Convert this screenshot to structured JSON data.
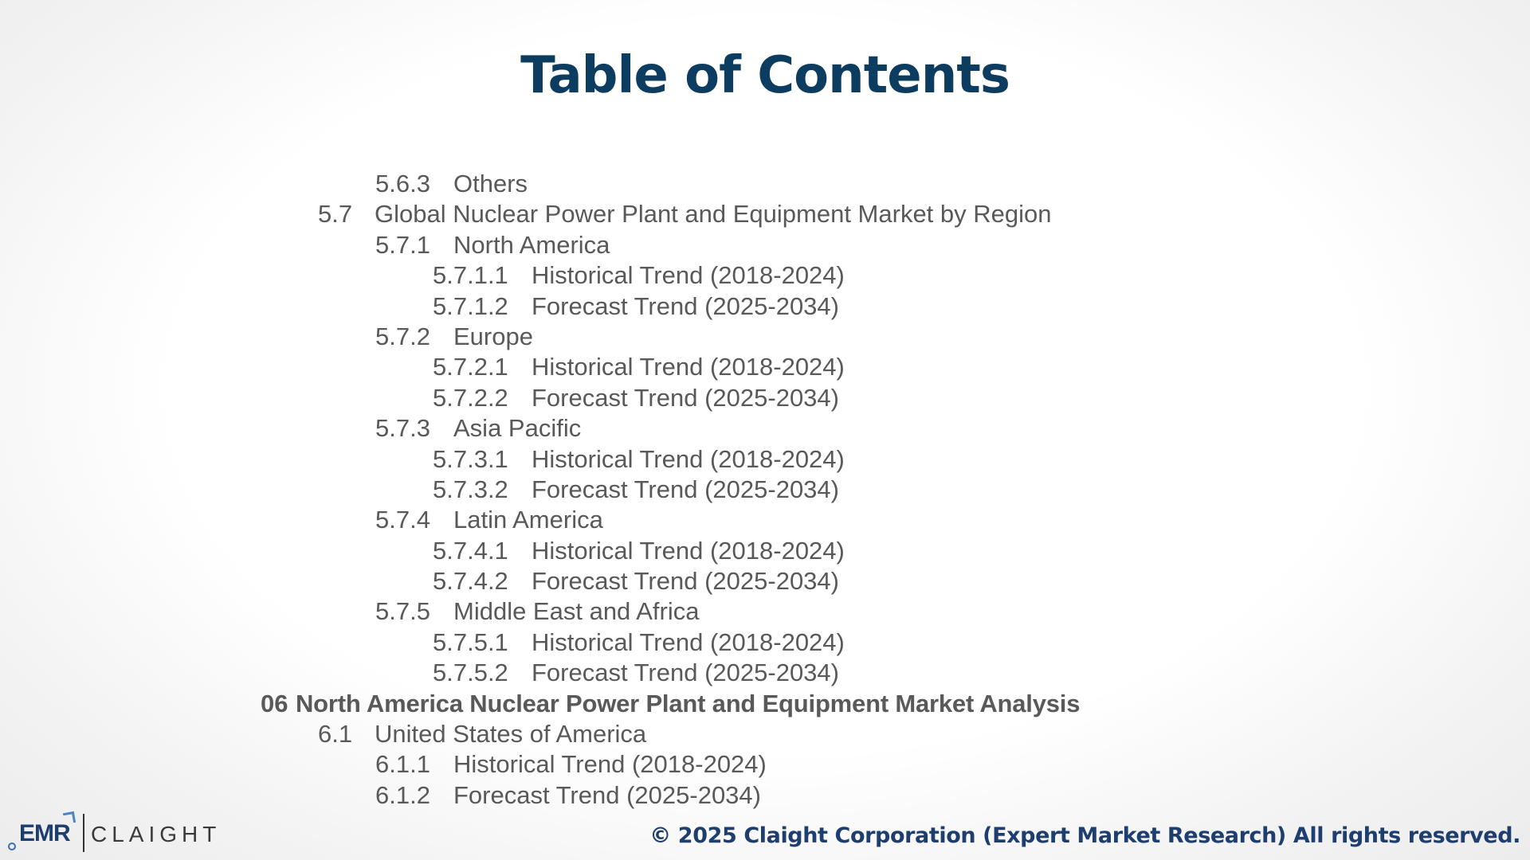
{
  "title": "Table of Contents",
  "toc": [
    {
      "num": "5.6.3",
      "label": "Others",
      "level": 2
    },
    {
      "num": "5.7",
      "label": "Global Nuclear Power Plant and Equipment Market by Region",
      "level": 1
    },
    {
      "num": "5.7.1",
      "label": "North America",
      "level": 2
    },
    {
      "num": "5.7.1.1",
      "label": "Historical Trend (2018-2024)",
      "level": 3
    },
    {
      "num": "5.7.1.2",
      "label": "Forecast Trend (2025-2034)",
      "level": 3
    },
    {
      "num": "5.7.2",
      "label": "Europe",
      "level": 2
    },
    {
      "num": "5.7.2.1",
      "label": "Historical Trend (2018-2024)",
      "level": 3
    },
    {
      "num": "5.7.2.2",
      "label": "Forecast Trend (2025-2034)",
      "level": 3
    },
    {
      "num": "5.7.3",
      "label": "Asia Pacific",
      "level": 2
    },
    {
      "num": "5.7.3.1",
      "label": "Historical Trend (2018-2024)",
      "level": 3
    },
    {
      "num": "5.7.3.2",
      "label": "Forecast Trend (2025-2034)",
      "level": 3
    },
    {
      "num": "5.7.4",
      "label": "Latin America",
      "level": 2
    },
    {
      "num": "5.7.4.1",
      "label": "Historical Trend (2018-2024)",
      "level": 3
    },
    {
      "num": "5.7.4.2",
      "label": "Forecast Trend (2025-2034)",
      "level": 3
    },
    {
      "num": "5.7.5",
      "label": "Middle East and Africa",
      "level": 2
    },
    {
      "num": "5.7.5.1",
      "label": "Historical Trend (2018-2024)",
      "level": 3
    },
    {
      "num": "5.7.5.2",
      "label": "Forecast Trend (2025-2034)",
      "level": 3
    },
    {
      "num": "06",
      "label": "North America Nuclear Power Plant and Equipment Market Analysis",
      "level": 0
    },
    {
      "num": "6.1",
      "label": "United States of America",
      "level": 1
    },
    {
      "num": "6.1.1",
      "label": "Historical Trend (2018-2024)",
      "level": 2
    },
    {
      "num": "6.1.2",
      "label": "Forecast Trend (2025-2034)",
      "level": 2
    }
  ],
  "footer": {
    "logo_emr": "EMR",
    "logo_claight": "CLAIGHT",
    "copyright": "© 2025 Claight Corporation (Expert Market Research) All rights reserved."
  },
  "colors": {
    "title": "#0c3c5f",
    "text": "#595959",
    "footer": "#1d3e6e"
  }
}
